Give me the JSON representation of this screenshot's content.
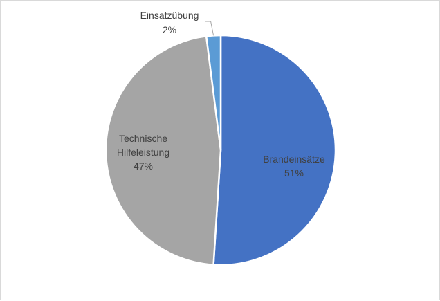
{
  "chart_data": {
    "type": "pie",
    "title": "",
    "series": [
      {
        "values": [
          51,
          47,
          2
        ],
        "categories": [
          "Brandeinsätze",
          "Technische Hilfeleistung",
          "Einsatzübung"
        ]
      }
    ],
    "labels": [
      {
        "lines": [
          "Brandeinsätze",
          "51%"
        ]
      },
      {
        "lines": [
          "Technische",
          "Hilfeleistung",
          "47%"
        ]
      },
      {
        "lines": [
          "Einsatzübung",
          "2%"
        ]
      }
    ],
    "colors": [
      "#4472c4",
      "#a5a5a5",
      "#5b9bd5"
    ],
    "start_angle_deg": 0,
    "direction": "clockwise",
    "legend": "none"
  }
}
